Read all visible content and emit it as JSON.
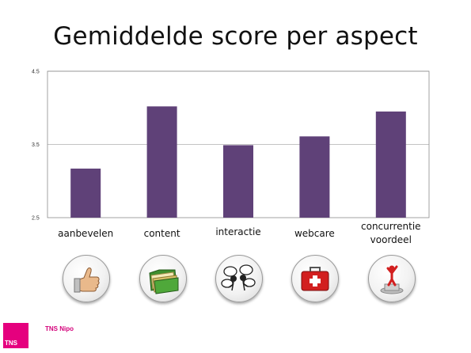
{
  "slide": {
    "title": "Gemiddelde score per aspect",
    "brand_name": "TNS Nipo",
    "logo_text": "TNS"
  },
  "colors": {
    "bar": "#5f4178",
    "plot_border": "#8c8c8c",
    "gridline": "#b0b0b0",
    "brand": "#e5007e"
  },
  "icons": [
    {
      "name": "thumbs-up-icon"
    },
    {
      "name": "folders-icon"
    },
    {
      "name": "speech-bubbles-icon"
    },
    {
      "name": "first-aid-kit-icon"
    },
    {
      "name": "podium-figure-icon"
    }
  ],
  "chart_data": {
    "type": "bar",
    "title": "Gemiddelde score per aspect",
    "categories": [
      "aanbevelen",
      "content",
      "interactie",
      "webcare",
      "concurrentie voordeel"
    ],
    "category_lines": [
      [
        "aanbevelen"
      ],
      [
        "content"
      ],
      [
        "interactie"
      ],
      [
        "webcare"
      ],
      [
        "concurrentie",
        "voordeel"
      ]
    ],
    "values": [
      3.17,
      4.02,
      3.49,
      3.61,
      3.95
    ],
    "ylim": [
      2.5,
      4.5
    ],
    "yticks": [
      2.5,
      3.5,
      4.5
    ],
    "ytick_labels": [
      "2.5",
      "3.5",
      "4.5"
    ],
    "grid": true,
    "legend": "none"
  }
}
